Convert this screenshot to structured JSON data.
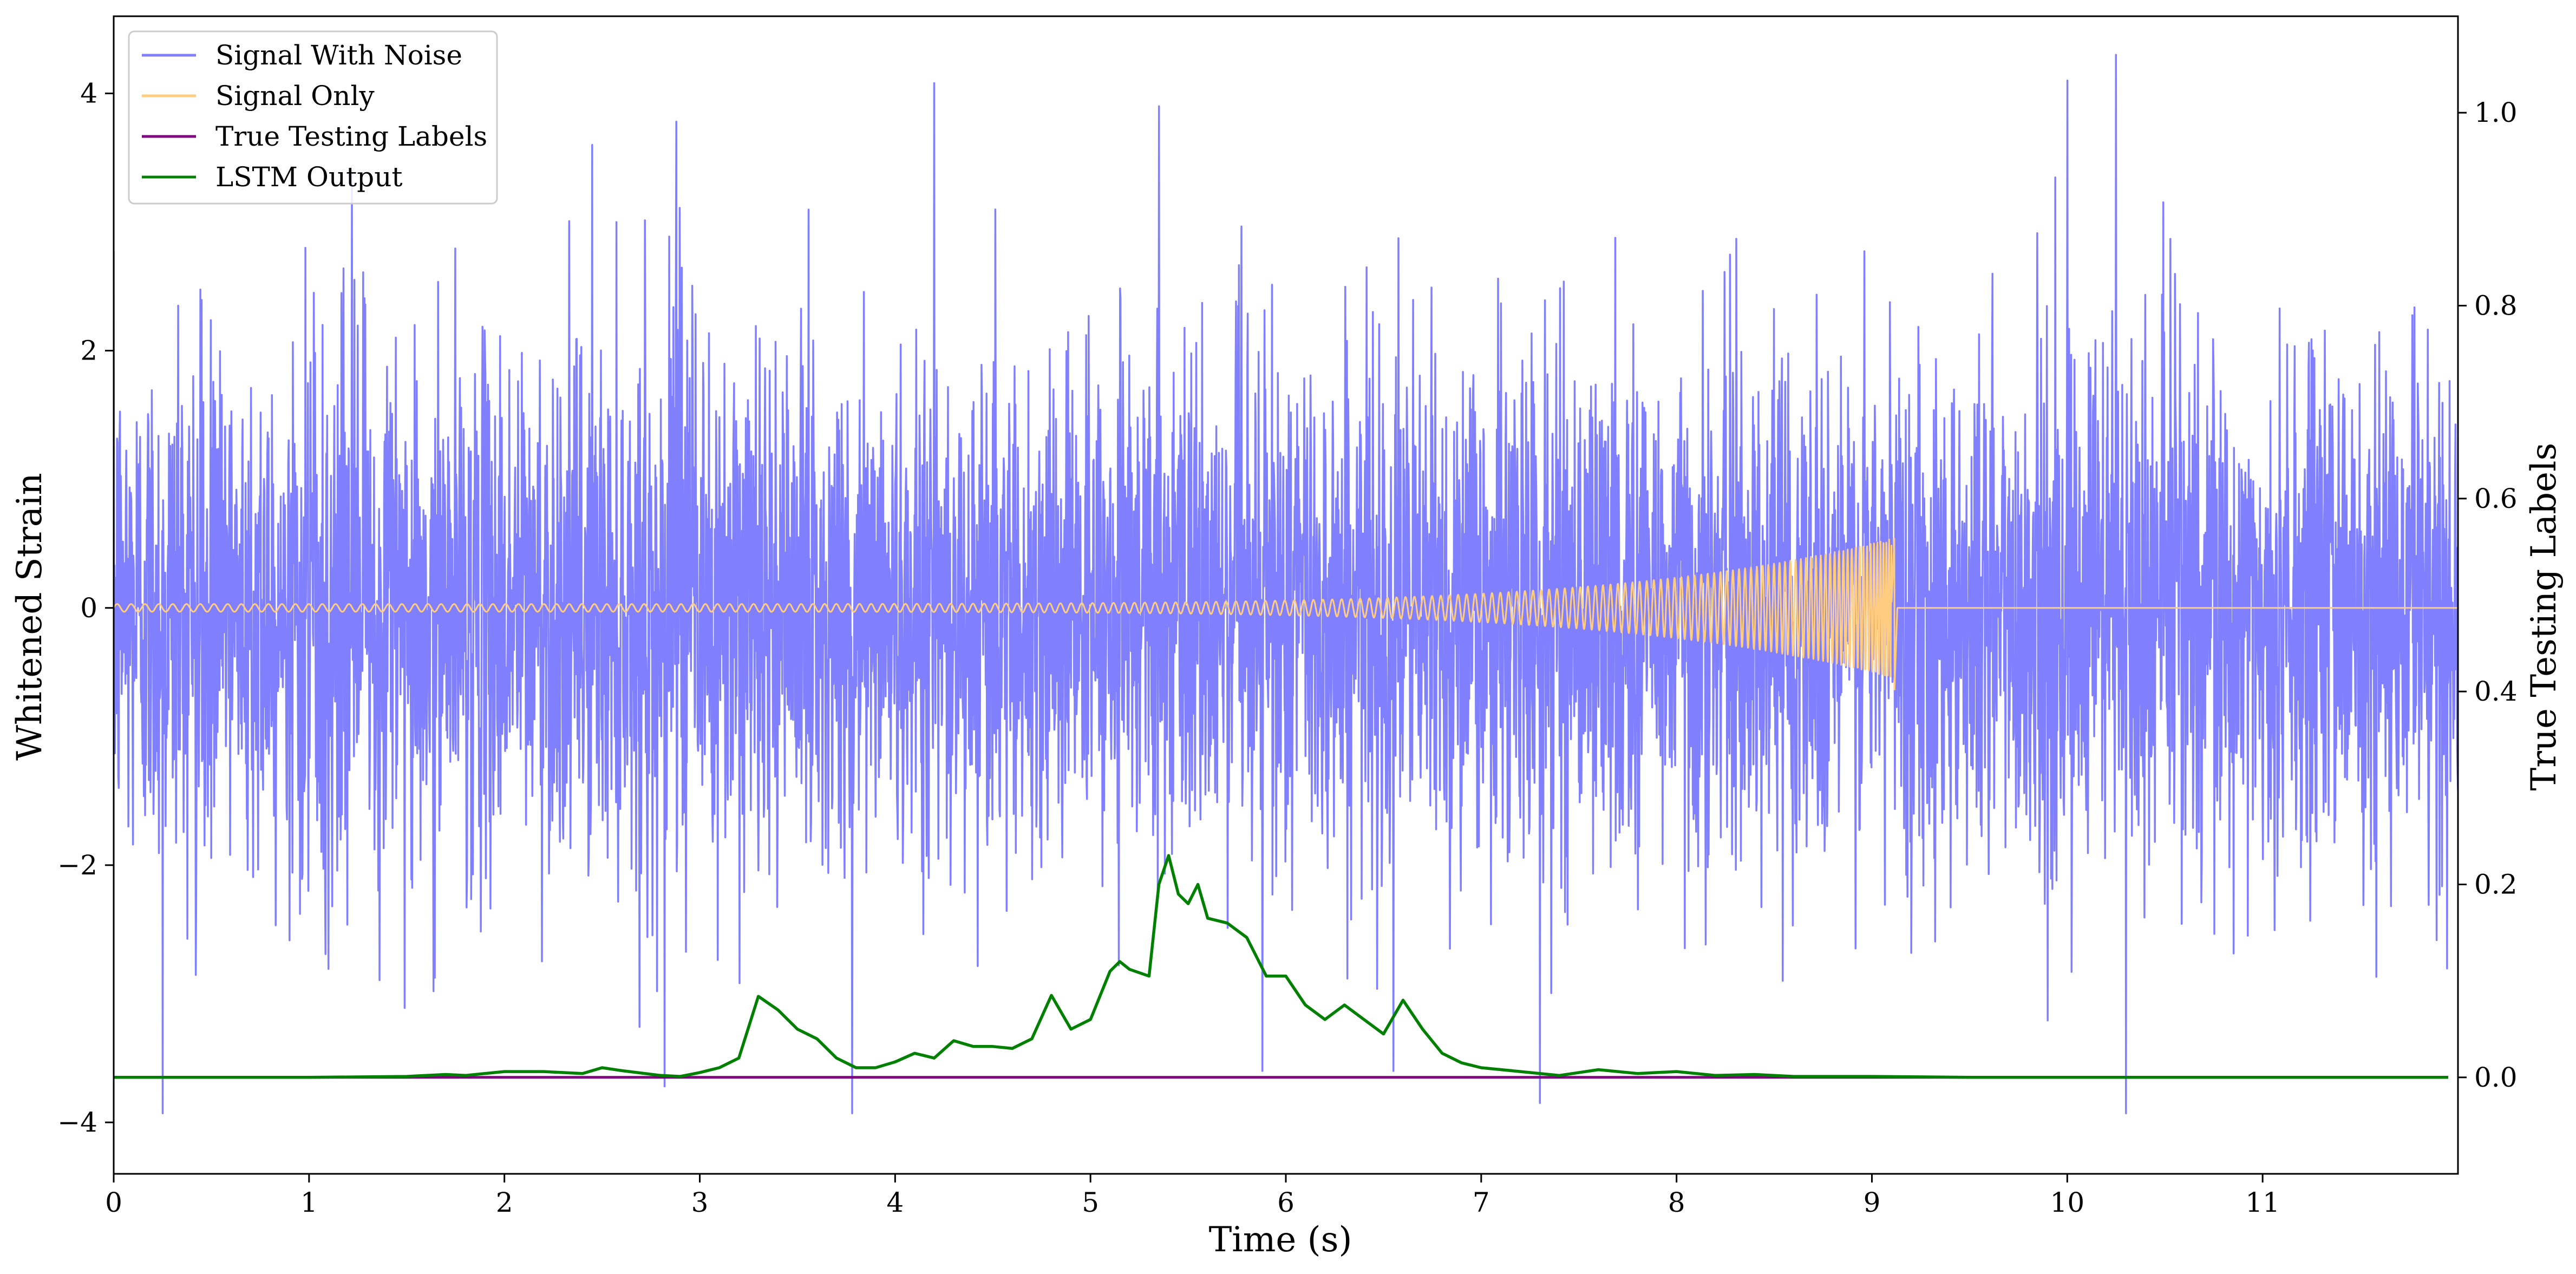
{
  "chart_data": {
    "type": "line",
    "title": "",
    "xlabel": "Time (s)",
    "ylabel_left": "Whitened Strain",
    "ylabel_right": "True Testing Labels",
    "xlim": [
      0,
      12
    ],
    "ylim_left": [
      -4.4,
      4.6
    ],
    "ylim_right": [
      -0.1,
      1.1
    ],
    "x_ticks": [
      0,
      1,
      2,
      3,
      4,
      5,
      6,
      7,
      8,
      9,
      10,
      11
    ],
    "x_tick_labels": [
      "0",
      "1",
      "2",
      "3",
      "4",
      "5",
      "6",
      "7",
      "8",
      "9",
      "10",
      "11"
    ],
    "y_left_ticks": [
      -4,
      -2,
      0,
      2,
      4
    ],
    "y_left_tick_labels": [
      "−4",
      "−2",
      "0",
      "2",
      "4"
    ],
    "y_right_ticks": [
      0.0,
      0.2,
      0.4,
      0.6,
      0.8,
      1.0
    ],
    "y_right_tick_labels": [
      "0.0",
      "0.2",
      "0.4",
      "0.6",
      "0.8",
      "1.0"
    ],
    "grid": false,
    "legend_position": "top-left",
    "series": [
      {
        "name": "Signal With Noise",
        "axis": "left",
        "color": "#8080ff",
        "style": "dense noise, roughly gaussian, spikes up to 4.3 and down to -3.9",
        "spikes": [
          {
            "x": 0.25,
            "y": -3.93
          },
          {
            "x": 0.33,
            "y": 2.35
          },
          {
            "x": 1.22,
            "y": 3.4
          },
          {
            "x": 2.45,
            "y": 3.6
          },
          {
            "x": 2.82,
            "y": -3.72
          },
          {
            "x": 2.88,
            "y": 3.78
          },
          {
            "x": 3.78,
            "y": -3.93
          },
          {
            "x": 4.2,
            "y": 4.08
          },
          {
            "x": 5.35,
            "y": 3.9
          },
          {
            "x": 5.88,
            "y": -3.6
          },
          {
            "x": 6.55,
            "y": -3.6
          },
          {
            "x": 7.3,
            "y": -3.85
          },
          {
            "x": 10.0,
            "y": 4.1
          },
          {
            "x": 10.25,
            "y": 4.3
          },
          {
            "x": 10.3,
            "y": -3.93
          }
        ]
      },
      {
        "name": "Signal Only",
        "axis": "left",
        "color": "#ffcc80",
        "chirp": {
          "start": 0.0,
          "merger": 9.13,
          "amplitude_start": 0.03,
          "amplitude_peak": 0.55,
          "amplitude_min": -0.68
        }
      },
      {
        "name": "True Testing Labels",
        "axis": "right",
        "color": "#800080",
        "x": [
          0,
          11.95
        ],
        "y": [
          0.0,
          0.0
        ]
      },
      {
        "name": "LSTM Output",
        "axis": "right",
        "color": "#008000",
        "x": [
          0,
          0.5,
          1.0,
          1.5,
          1.7,
          1.8,
          2.0,
          2.2,
          2.4,
          2.5,
          2.6,
          2.8,
          2.9,
          3.0,
          3.1,
          3.2,
          3.3,
          3.4,
          3.5,
          3.6,
          3.7,
          3.8,
          3.9,
          4.0,
          4.1,
          4.2,
          4.3,
          4.4,
          4.5,
          4.6,
          4.7,
          4.8,
          4.9,
          5.0,
          5.1,
          5.15,
          5.2,
          5.3,
          5.35,
          5.4,
          5.45,
          5.5,
          5.55,
          5.6,
          5.7,
          5.8,
          5.9,
          6.0,
          6.1,
          6.2,
          6.3,
          6.4,
          6.5,
          6.6,
          6.7,
          6.8,
          6.9,
          7.0,
          7.2,
          7.4,
          7.6,
          7.8,
          8.0,
          8.2,
          8.4,
          8.6,
          8.8,
          9.0,
          9.5,
          10.0,
          10.5,
          11.0,
          11.5,
          11.95
        ],
        "y": [
          0.0,
          0.0,
          0.0,
          0.001,
          0.003,
          0.002,
          0.006,
          0.006,
          0.004,
          0.01,
          0.007,
          0.002,
          0.001,
          0.005,
          0.01,
          0.02,
          0.084,
          0.07,
          0.05,
          0.04,
          0.02,
          0.01,
          0.01,
          0.016,
          0.025,
          0.02,
          0.038,
          0.032,
          0.032,
          0.03,
          0.04,
          0.085,
          0.05,
          0.06,
          0.11,
          0.12,
          0.112,
          0.105,
          0.2,
          0.23,
          0.19,
          0.18,
          0.2,
          0.165,
          0.16,
          0.145,
          0.105,
          0.105,
          0.075,
          0.06,
          0.075,
          0.06,
          0.045,
          0.08,
          0.05,
          0.025,
          0.015,
          0.01,
          0.006,
          0.002,
          0.008,
          0.004,
          0.006,
          0.002,
          0.003,
          0.001,
          0.001,
          0.001,
          0.0,
          0.0,
          0.0,
          0.0,
          0.0,
          0.0
        ]
      }
    ]
  }
}
